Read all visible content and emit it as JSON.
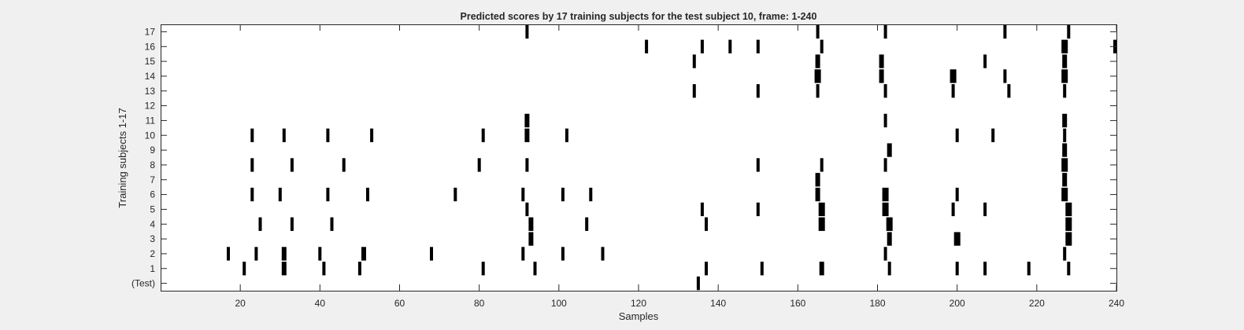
{
  "chart_data": {
    "type": "raster",
    "title": "Predicted scores by 17 training subjects for the test subject 10, frame: 1-240",
    "xlabel": "Samples",
    "ylabel": "Training subjects 1-17",
    "xlim": [
      0,
      240
    ],
    "x_ticks": [
      20,
      40,
      60,
      80,
      100,
      120,
      140,
      160,
      180,
      200,
      220,
      240
    ],
    "y_tick_labels": [
      "(Test)",
      "1",
      "2",
      "3",
      "4",
      "5",
      "6",
      "7",
      "8",
      "9",
      "10",
      "11",
      "12",
      "13",
      "14",
      "15",
      "16",
      "17"
    ],
    "grid": false,
    "mark_color": "#000000",
    "background_color": "#ffffff",
    "series": [
      {
        "row": "(Test)",
        "events": [
          135
        ]
      },
      {
        "row": "1",
        "events": [
          [
            21,
            1
          ],
          [
            31,
            2
          ],
          [
            41,
            1
          ],
          [
            50,
            1
          ],
          [
            81,
            1
          ],
          [
            94,
            1
          ],
          [
            137,
            1
          ],
          [
            151,
            1
          ],
          [
            166,
            2
          ],
          [
            183,
            1
          ],
          [
            200,
            1
          ],
          [
            207,
            1
          ],
          [
            218,
            1
          ],
          [
            228,
            1
          ]
        ]
      },
      {
        "row": "2",
        "events": [
          [
            17,
            1
          ],
          [
            24,
            1
          ],
          [
            31,
            2
          ],
          [
            40,
            1
          ],
          [
            51,
            2
          ],
          [
            68,
            1
          ],
          [
            91,
            1
          ],
          [
            101,
            1
          ],
          [
            111,
            1
          ],
          [
            182,
            1
          ],
          [
            227,
            1
          ]
        ]
      },
      {
        "row": "3",
        "events": [
          [
            93,
            2
          ],
          [
            183,
            2
          ],
          [
            200,
            3
          ],
          [
            228,
            3
          ]
        ]
      },
      {
        "row": "4",
        "events": [
          [
            25,
            1
          ],
          [
            33,
            1
          ],
          [
            43,
            1
          ],
          [
            93,
            2
          ],
          [
            107,
            1
          ],
          [
            137,
            1
          ],
          [
            166,
            3
          ],
          [
            183,
            3
          ],
          [
            228,
            3
          ]
        ]
      },
      {
        "row": "5",
        "events": [
          [
            92,
            1
          ],
          [
            136,
            1
          ],
          [
            150,
            1
          ],
          [
            166,
            3
          ],
          [
            182,
            3
          ],
          [
            199,
            1
          ],
          [
            207,
            1
          ],
          [
            228,
            3
          ]
        ]
      },
      {
        "row": "6",
        "events": [
          [
            23,
            1
          ],
          [
            30,
            1
          ],
          [
            42,
            1
          ],
          [
            52,
            1
          ],
          [
            74,
            1
          ],
          [
            91,
            1
          ],
          [
            101,
            1
          ],
          [
            108,
            1
          ],
          [
            165,
            2
          ],
          [
            182,
            3
          ],
          [
            200,
            1
          ],
          [
            227,
            3
          ]
        ]
      },
      {
        "row": "7",
        "events": [
          [
            165,
            2
          ],
          [
            227,
            2
          ]
        ]
      },
      {
        "row": "8",
        "events": [
          [
            23,
            1
          ],
          [
            33,
            1
          ],
          [
            46,
            1
          ],
          [
            80,
            1
          ],
          [
            92,
            1
          ],
          [
            150,
            1
          ],
          [
            166,
            1
          ],
          [
            182,
            1
          ],
          [
            227,
            3
          ]
        ]
      },
      {
        "row": "9",
        "events": [
          [
            183,
            2
          ],
          [
            227,
            2
          ]
        ]
      },
      {
        "row": "10",
        "events": [
          [
            23,
            1
          ],
          [
            31,
            1
          ],
          [
            42,
            1
          ],
          [
            53,
            1
          ],
          [
            81,
            1
          ],
          [
            92,
            2
          ],
          [
            102,
            1
          ],
          [
            200,
            1
          ],
          [
            209,
            1
          ],
          [
            227,
            1
          ]
        ]
      },
      {
        "row": "11",
        "events": [
          [
            92,
            2
          ],
          [
            182,
            1
          ],
          [
            227,
            2
          ]
        ]
      },
      {
        "row": "12",
        "events": []
      },
      {
        "row": "13",
        "events": [
          [
            134,
            1
          ],
          [
            150,
            1
          ],
          [
            165,
            1
          ],
          [
            182,
            1
          ],
          [
            199,
            1
          ],
          [
            213,
            1
          ],
          [
            227,
            1
          ]
        ]
      },
      {
        "row": "14",
        "events": [
          [
            165,
            3
          ],
          [
            181,
            2
          ],
          [
            199,
            3
          ],
          [
            212,
            1
          ],
          [
            227,
            3
          ]
        ]
      },
      {
        "row": "15",
        "events": [
          [
            134,
            1
          ],
          [
            165,
            2
          ],
          [
            181,
            2
          ],
          [
            207,
            1
          ],
          [
            227,
            2
          ]
        ]
      },
      {
        "row": "16",
        "events": [
          [
            122,
            1
          ],
          [
            136,
            1
          ],
          [
            143,
            1
          ],
          [
            150,
            1
          ],
          [
            166,
            1
          ],
          [
            227,
            3
          ],
          [
            240,
            1
          ]
        ]
      },
      {
        "row": "17",
        "events": [
          [
            92,
            1
          ],
          [
            165,
            1
          ],
          [
            182,
            1
          ],
          [
            212,
            1
          ],
          [
            228,
            1
          ]
        ]
      }
    ]
  }
}
